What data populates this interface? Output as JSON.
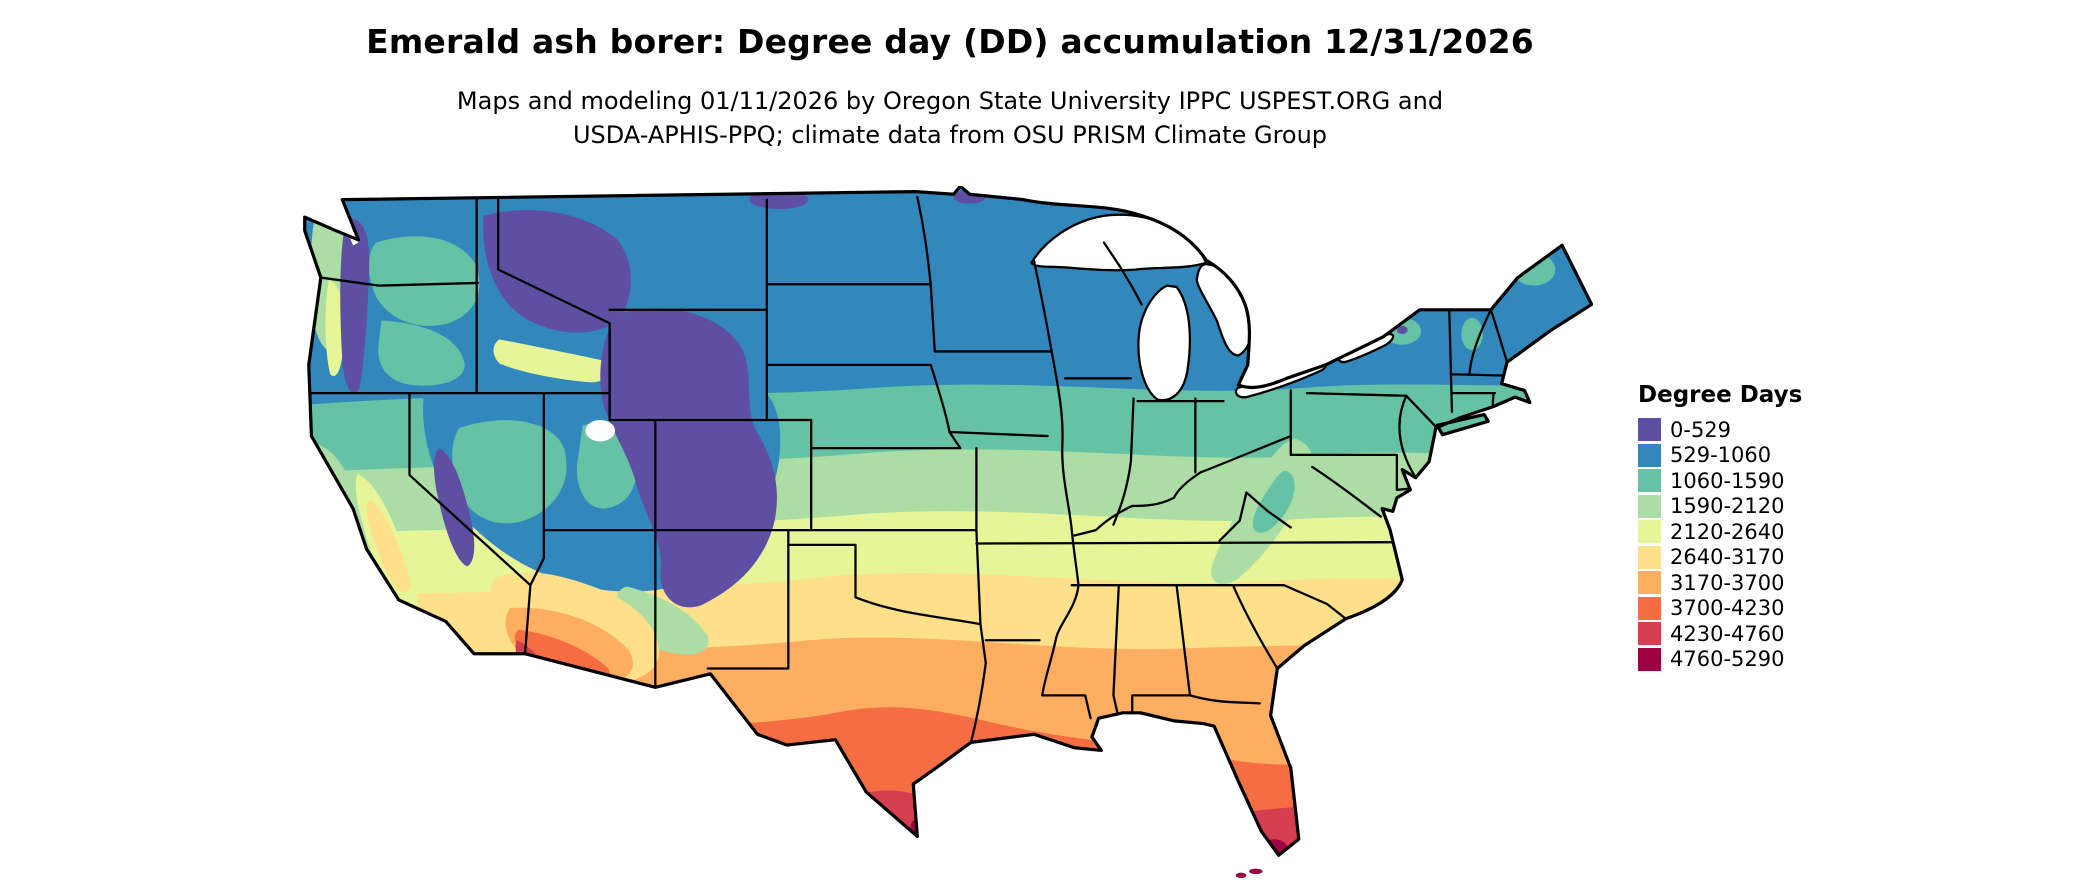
{
  "header": {
    "title": "Emerald ash borer: Degree day (DD) accumulation 12/31/2026",
    "subtitle_line1": "Maps and modeling 01/11/2026 by Oregon State University IPPC USPEST.ORG and",
    "subtitle_line2": "USDA-APHIS-PPQ; climate data from OSU PRISM Climate Group"
  },
  "legend": {
    "title": "Degree Days",
    "classes": [
      {
        "label": "0-529",
        "color": "#5e4fa2"
      },
      {
        "label": "529-1060",
        "color": "#3288bd"
      },
      {
        "label": "1060-1590",
        "color": "#66c2a5"
      },
      {
        "label": "1590-2120",
        "color": "#abdda4"
      },
      {
        "label": "2120-2640",
        "color": "#e6f598"
      },
      {
        "label": "2640-3170",
        "color": "#fee08b"
      },
      {
        "label": "3170-3700",
        "color": "#fdae61"
      },
      {
        "label": "3700-4230",
        "color": "#f46d43"
      },
      {
        "label": "4230-4760",
        "color": "#d53e4f"
      },
      {
        "label": "4760-5290",
        "color": "#9e0142"
      }
    ]
  },
  "map": {
    "water_color": "#ffffff",
    "border_color": "#000000"
  }
}
